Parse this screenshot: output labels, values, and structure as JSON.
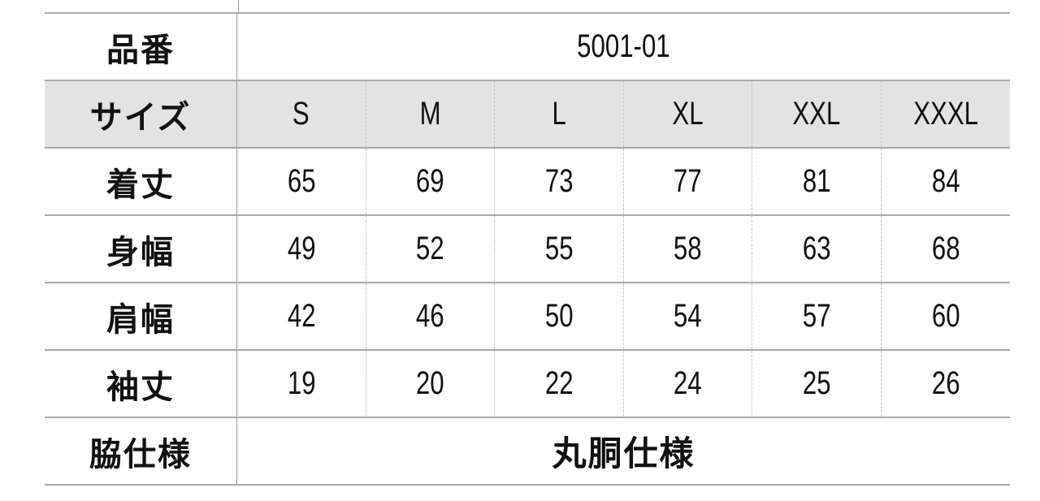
{
  "table": {
    "product_label": "品番",
    "product_code": "5001-01",
    "size_label": "サイズ",
    "sizes": [
      "S",
      "M",
      "L",
      "XL",
      "XXL",
      "XXXL"
    ],
    "rows": [
      {
        "label": "着丈",
        "values": [
          "65",
          "69",
          "73",
          "77",
          "81",
          "84"
        ]
      },
      {
        "label": "身幅",
        "values": [
          "49",
          "52",
          "55",
          "58",
          "63",
          "68"
        ]
      },
      {
        "label": "肩幅",
        "values": [
          "42",
          "46",
          "50",
          "54",
          "57",
          "60"
        ]
      },
      {
        "label": "袖丈",
        "values": [
          "19",
          "20",
          "22",
          "24",
          "25",
          "26"
        ]
      }
    ],
    "side_label": "脇仕様",
    "side_value": "丸胴仕様"
  },
  "colors": {
    "header_bg": "#e3e3e3",
    "border": "#a8a8a8"
  }
}
